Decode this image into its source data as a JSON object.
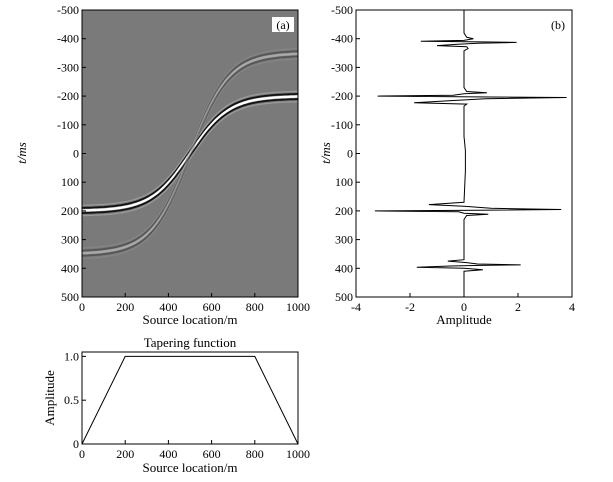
{
  "chart_data": [
    {
      "type": "heatmap",
      "panel_label": "(a)",
      "xlabel": "Source location/m",
      "ylabel": "t/ms",
      "xlim": [
        0,
        1000
      ],
      "ylim": [
        -500,
        500
      ],
      "x_ticks": [
        "0",
        "200",
        "400",
        "600",
        "800",
        "1000"
      ],
      "y_ticks": [
        "-500",
        "-400",
        "-300",
        "-200",
        "-100",
        "0",
        "100",
        "200",
        "300",
        "400",
        "500"
      ],
      "events": [
        {
          "shape": "sigmoid",
          "left_t": 200,
          "right_t": -200,
          "center_x": 500,
          "strength": 1.0
        },
        {
          "shape": "sigmoid",
          "left_t": 350,
          "right_t": -350,
          "center_x": 500,
          "strength": 0.35
        }
      ],
      "colors": {
        "background": "#7a7a7a",
        "bright": "#ffffff",
        "dark": "#000000"
      }
    },
    {
      "type": "line",
      "panel_label": "(b)",
      "xlabel": "Amplitude",
      "ylabel": "t/ms",
      "xlim": [
        -4,
        4
      ],
      "ylim": [
        -500,
        500
      ],
      "x_ticks": [
        "-4",
        "-2",
        "0",
        "2",
        "4"
      ],
      "y_ticks": [
        "-500",
        "-400",
        "-300",
        "-200",
        "-100",
        "0",
        "100",
        "200",
        "300",
        "400",
        "500"
      ],
      "series": [
        {
          "points": [
            [
              -500,
              0
            ],
            [
              -420,
              0
            ],
            [
              -405,
              0.1
            ],
            [
              -400,
              0.35
            ],
            [
              -394,
              0
            ],
            [
              -391,
              -1.6
            ],
            [
              -389,
              0.6
            ],
            [
              -387,
              1.95
            ],
            [
              -384,
              0.5
            ],
            [
              -380,
              -0.3
            ],
            [
              -376,
              -1.0
            ],
            [
              -372,
              0.1
            ],
            [
              -366,
              0.15
            ],
            [
              -358,
              0
            ],
            [
              -230,
              0
            ],
            [
              -216,
              0.1
            ],
            [
              -212,
              0.85
            ],
            [
              -208,
              0
            ],
            [
              -203,
              -0.4
            ],
            [
              -200,
              -3.2
            ],
            [
              -197,
              1.0
            ],
            [
              -195,
              3.8
            ],
            [
              -191,
              0.8
            ],
            [
              -185,
              -0.3
            ],
            [
              -177,
              -1.85
            ],
            [
              -172,
              0.1
            ],
            [
              -165,
              0
            ],
            [
              -60,
              0
            ],
            [
              -10,
              0.05
            ],
            [
              60,
              0.05
            ],
            [
              170,
              0
            ],
            [
              178,
              -1.3
            ],
            [
              184,
              0
            ],
            [
              191,
              1.0
            ],
            [
              195,
              3.6
            ],
            [
              198,
              0.5
            ],
            [
              200,
              -3.3
            ],
            [
              203,
              -0.2
            ],
            [
              208,
              0
            ],
            [
              212,
              0.9
            ],
            [
              216,
              0.1
            ],
            [
              230,
              0
            ],
            [
              362,
              0
            ],
            [
              370,
              0
            ],
            [
              375,
              -0.6
            ],
            [
              380,
              0.1
            ],
            [
              385,
              0.5
            ],
            [
              388,
              2.1
            ],
            [
              390,
              0.6
            ],
            [
              392,
              -0.5
            ],
            [
              396,
              -1.75
            ],
            [
              400,
              0
            ],
            [
              405,
              0.7
            ],
            [
              410,
              0
            ],
            [
              420,
              0
            ],
            [
              500,
              0
            ]
          ]
        }
      ]
    },
    {
      "type": "line",
      "title": "Tapering function",
      "xlabel": "Source location/m",
      "ylabel": "Amplitude",
      "xlim": [
        0,
        1000
      ],
      "ylim": [
        0,
        1.05
      ],
      "x_ticks": [
        "0",
        "200",
        "400",
        "600",
        "800",
        "1000"
      ],
      "y_ticks": [
        "0",
        "0.5",
        "1.0"
      ],
      "series": [
        {
          "points": [
            [
              0,
              0
            ],
            [
              200,
              1
            ],
            [
              800,
              1
            ],
            [
              1000,
              0
            ]
          ]
        }
      ]
    }
  ]
}
